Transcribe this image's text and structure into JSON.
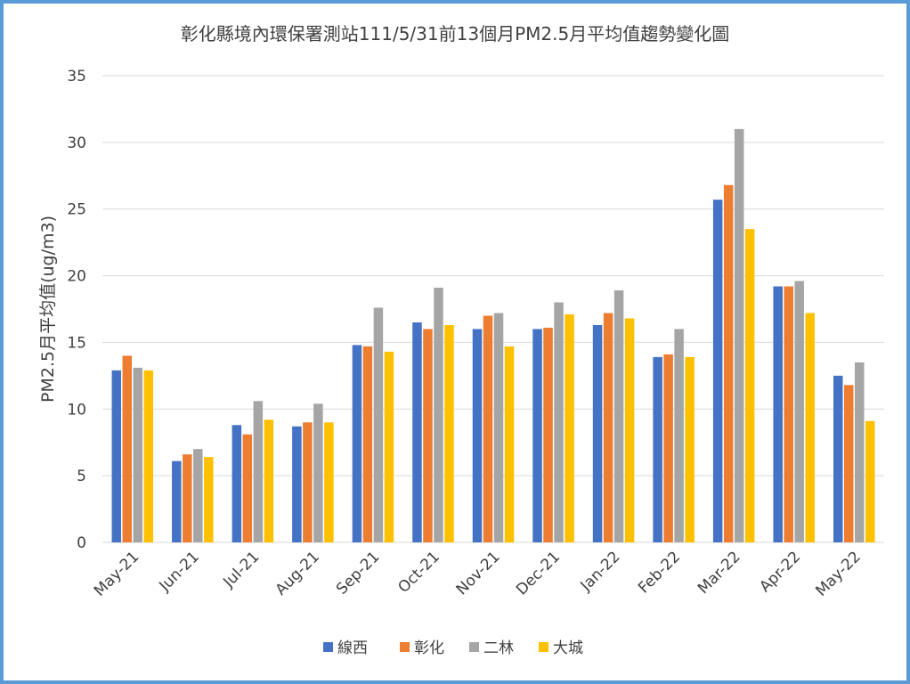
{
  "chart_data": {
    "type": "bar",
    "title": "彰化縣境內環保署測站111/5/31前13個月PM2.5月平均值趨勢變化圖",
    "xlabel": "",
    "ylabel": "PM2.5月平均值(ug/m3)",
    "ylim": [
      0,
      35
    ],
    "yticks": [
      0,
      5,
      10,
      15,
      20,
      25,
      30,
      35
    ],
    "grid": true,
    "legend_position": "bottom",
    "categories": [
      "May-21",
      "Jun-21",
      "Jul-21",
      "Aug-21",
      "Sep-21",
      "Oct-21",
      "Nov-21",
      "Dec-21",
      "Jan-22",
      "Feb-22",
      "Mar-22",
      "Apr-22",
      "May-22"
    ],
    "series": [
      {
        "name": "線西",
        "color": "#4472c4",
        "values": [
          12.9,
          6.1,
          8.8,
          8.7,
          14.8,
          16.5,
          16.0,
          16.0,
          16.3,
          13.9,
          25.7,
          19.2,
          12.5
        ]
      },
      {
        "name": "彰化",
        "color": "#ed7d31",
        "values": [
          14.0,
          6.6,
          8.1,
          9.0,
          14.7,
          16.0,
          17.0,
          16.1,
          17.2,
          14.1,
          26.8,
          19.2,
          11.8
        ]
      },
      {
        "name": "二林",
        "color": "#a5a5a5",
        "values": [
          13.1,
          7.0,
          10.6,
          10.4,
          17.6,
          19.1,
          17.2,
          18.0,
          18.9,
          16.0,
          31.0,
          19.6,
          13.5
        ]
      },
      {
        "name": "大城",
        "color": "#ffc000",
        "values": [
          12.9,
          6.4,
          9.2,
          9.0,
          14.3,
          16.3,
          14.7,
          17.1,
          16.8,
          13.9,
          23.5,
          17.2,
          9.1
        ]
      }
    ]
  }
}
